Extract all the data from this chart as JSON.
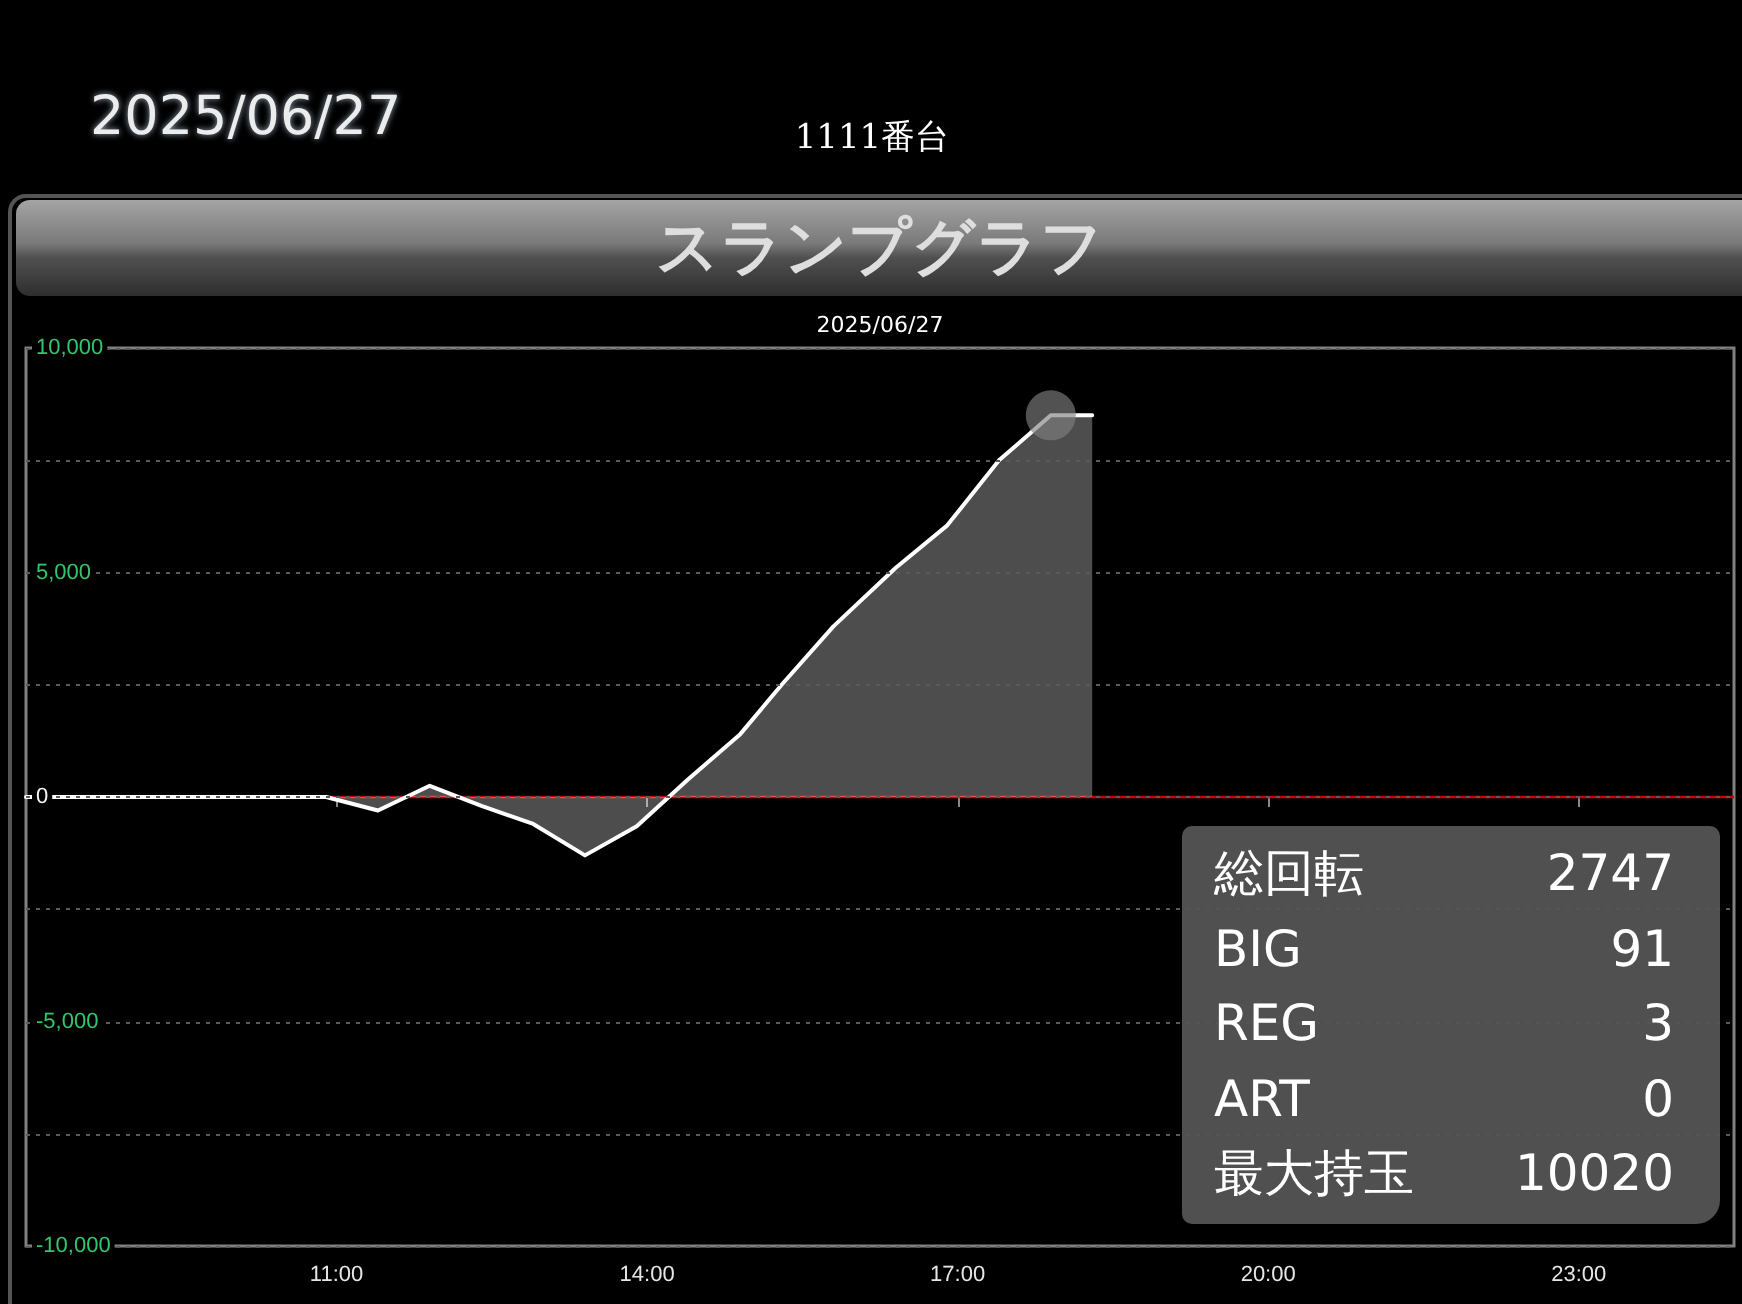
{
  "chart_data": {
    "type": "area",
    "title": "スランプグラフ",
    "subtitle": "2025/06/27",
    "annotations": [
      "2025/06/27",
      "1111番台",
      "総回転",
      "2747",
      "BIG",
      "91",
      "REG",
      "3",
      "ART",
      "0",
      "最大持玉",
      "10020"
    ],
    "xlim": [
      8,
      24.5
    ],
    "xticks": [
      {
        "value": 11,
        "label": "11:00"
      },
      {
        "value": 14,
        "label": "14:00"
      },
      {
        "value": 17,
        "label": "17:00"
      },
      {
        "value": 20,
        "label": "20:00"
      },
      {
        "value": 23,
        "label": "23:00"
      }
    ],
    "ylim": [
      -10000,
      10000
    ],
    "yticks": [
      {
        "value": -10000,
        "label": "-10,000"
      },
      {
        "value": -7500,
        "label": null
      },
      {
        "value": -5000,
        "label": "-5,000"
      },
      {
        "value": -2500,
        "label": null
      },
      0,
      {
        "value": 2500,
        "label": null
      },
      {
        "value": 5000,
        "label": "5,000"
      },
      {
        "value": 7500,
        "label": null
      },
      {
        "value": 10000,
        "label": "10,000"
      }
    ],
    "grid": "y",
    "marker": "none",
    "line_style": "solid",
    "ref_lines": [
      {
        "axis": "y",
        "value": 0,
        "color": "#cc0000"
      }
    ],
    "series": [
      {
        "color": "#ffffff",
        "x": [
          8,
          10.9,
          11.4,
          11.9,
          12.4,
          12.9,
          13.4,
          13.9,
          14.4,
          14.9,
          15.3,
          15.8,
          16.4,
          16.9,
          17.4,
          17.9,
          18.3
        ],
        "values": [
          0,
          0,
          -300,
          250,
          -200,
          -600,
          -1300,
          -650,
          400,
          1400,
          2500,
          3800,
          5100,
          6050,
          7500,
          8500,
          8500
        ]
      },
      {
        "type": "scatter",
        "marker": "circle",
        "color": "#808080",
        "x": [
          17.9
        ],
        "values": [
          8500
        ]
      }
    ]
  }
}
